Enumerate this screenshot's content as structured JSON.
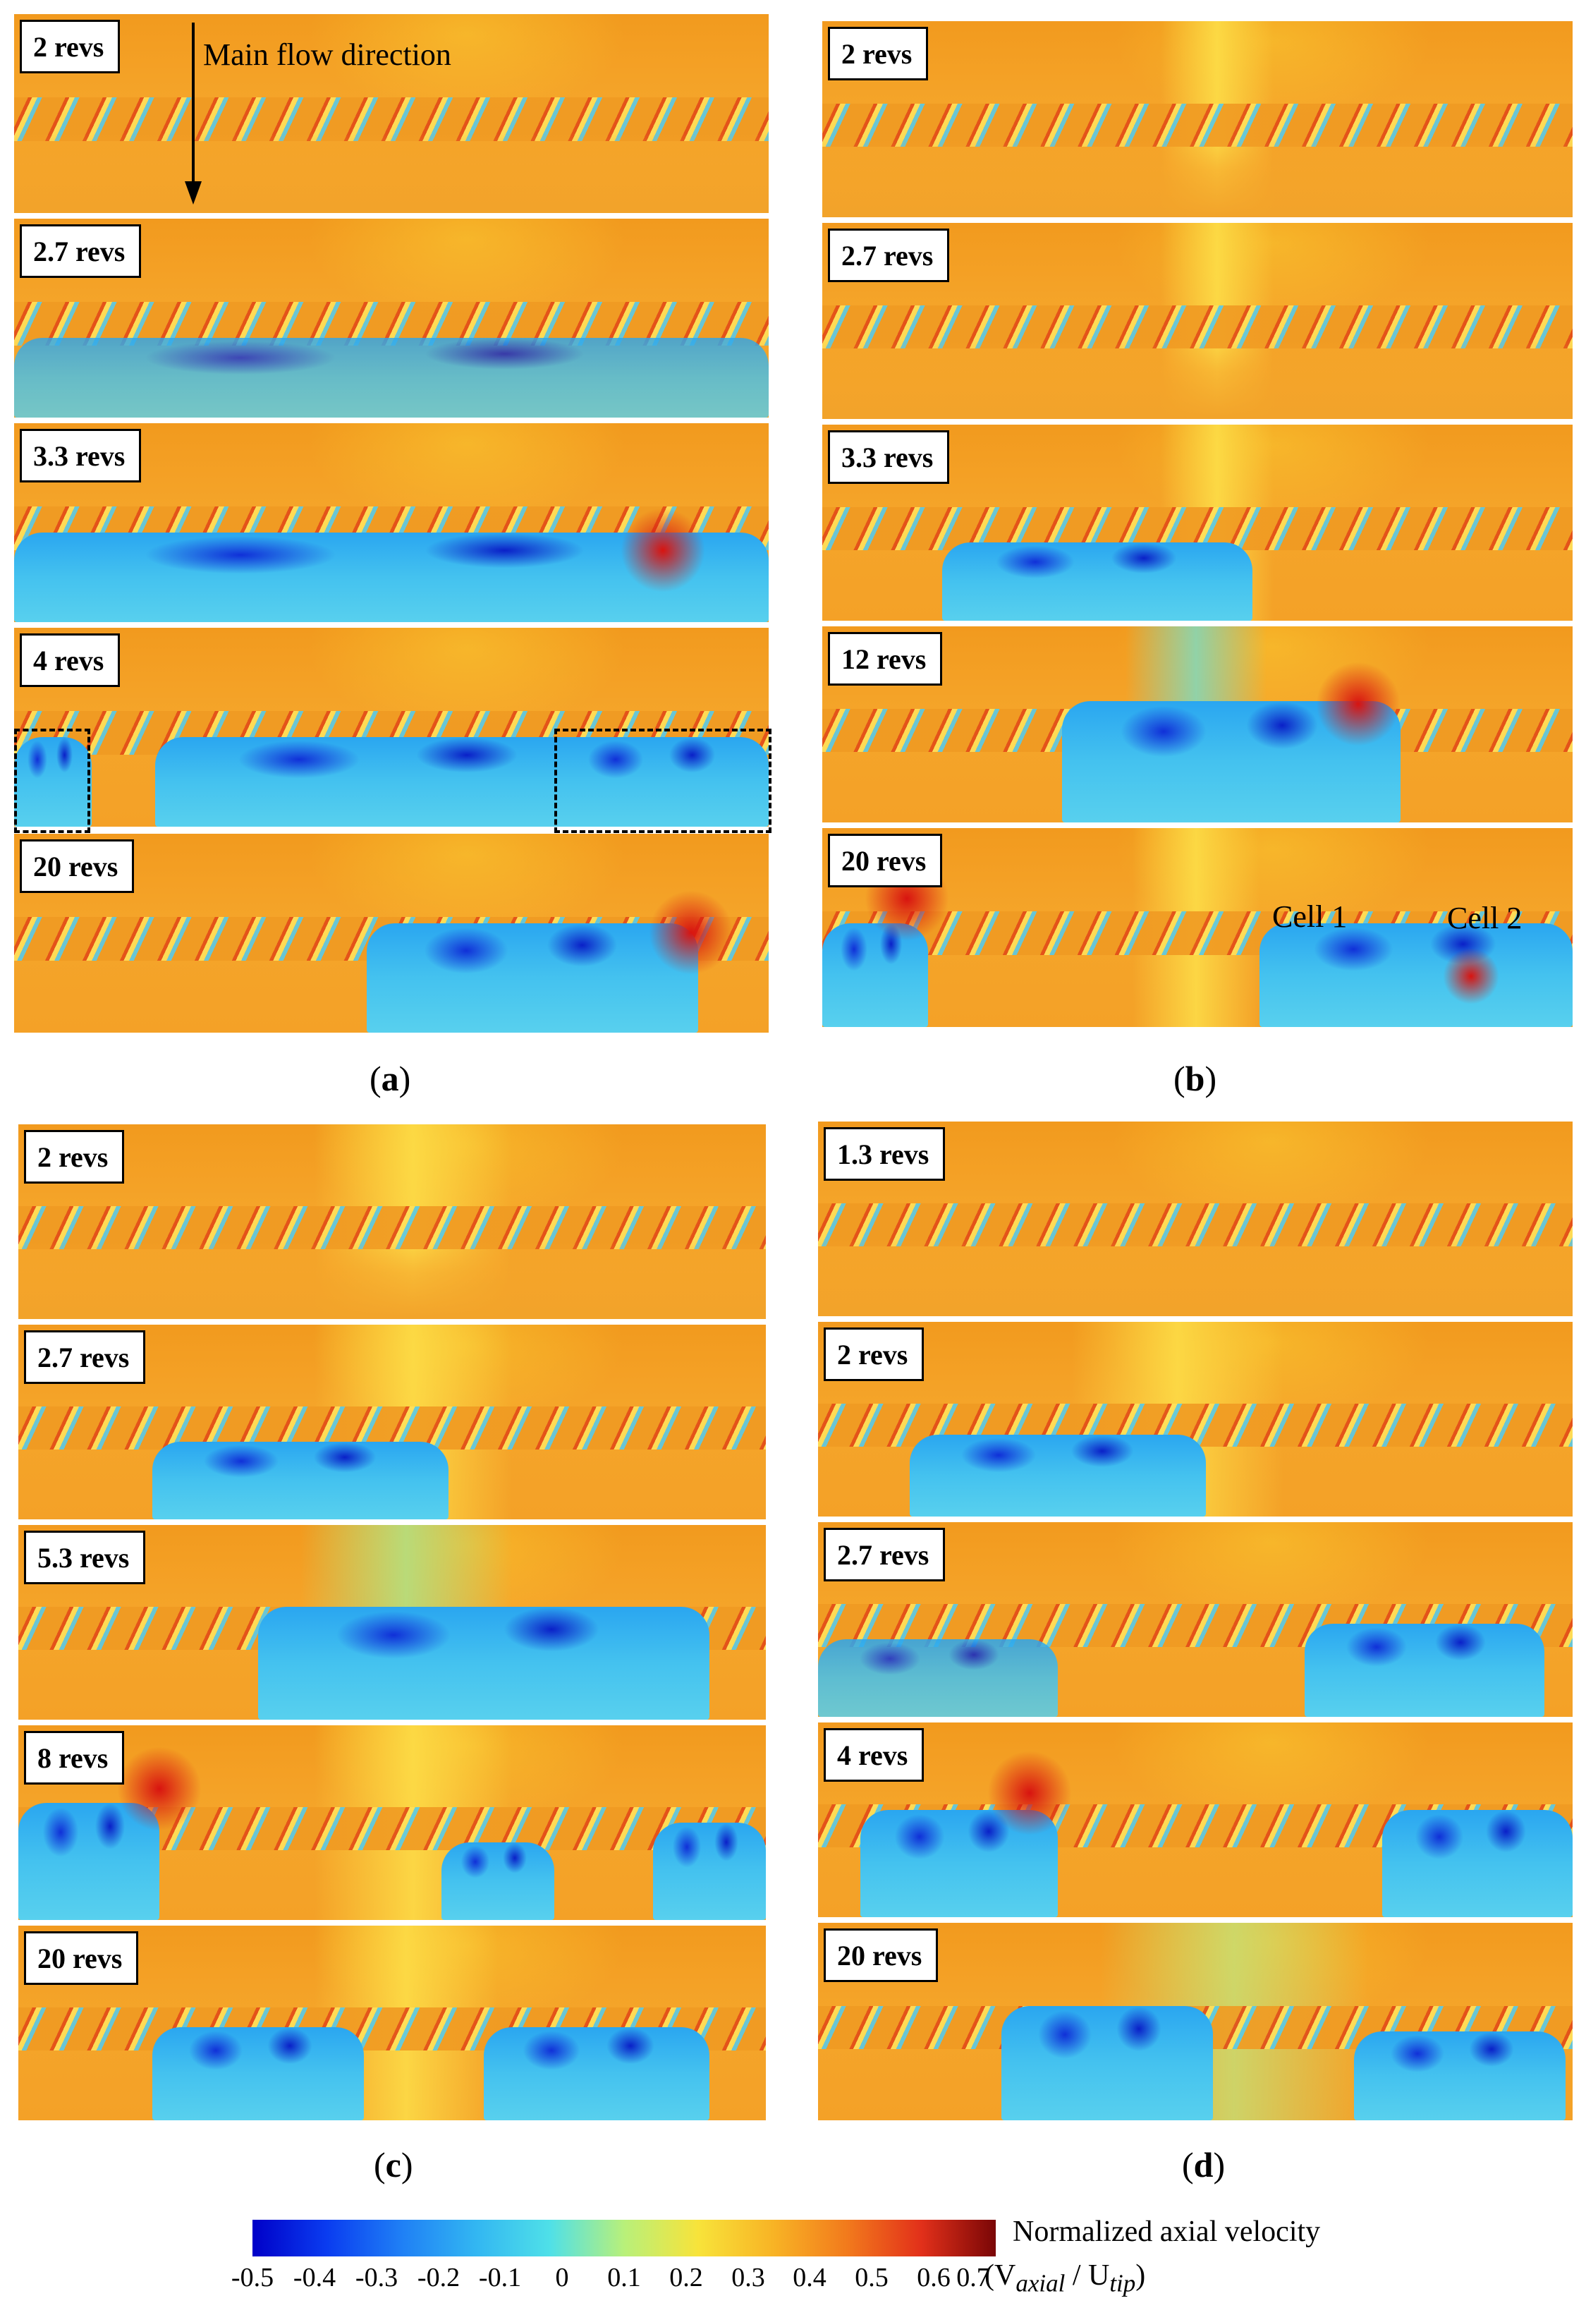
{
  "panels": [
    {
      "caption": "a",
      "snapshots": [
        {
          "label": "2 revs"
        },
        {
          "label": "2.7 revs"
        },
        {
          "label": "3.3 revs"
        },
        {
          "label": "4 revs"
        },
        {
          "label": "20 revs"
        }
      ],
      "annotation": "Main flow direction"
    },
    {
      "caption": "b",
      "snapshots": [
        {
          "label": "2 revs"
        },
        {
          "label": "2.7 revs"
        },
        {
          "label": "3.3 revs"
        },
        {
          "label": "12 revs"
        },
        {
          "label": "20 revs"
        }
      ],
      "cells": [
        "Cell 1",
        "Cell 2"
      ]
    },
    {
      "caption": "c",
      "snapshots": [
        {
          "label": "2 revs"
        },
        {
          "label": "2.7 revs"
        },
        {
          "label": "5.3 revs"
        },
        {
          "label": "8 revs"
        },
        {
          "label": "20 revs"
        }
      ]
    },
    {
      "caption": "d",
      "snapshots": [
        {
          "label": "1.3 revs"
        },
        {
          "label": "2 revs"
        },
        {
          "label": "2.7 revs"
        },
        {
          "label": "4 revs"
        },
        {
          "label": "20 revs"
        }
      ]
    }
  ],
  "colorbar": {
    "title": "Normalized axial velocity",
    "unit": "(V",
    "unit_sub1": "axial",
    "unit_mid": " / U",
    "unit_sub2": "tip",
    "unit_end": ")",
    "ticks": [
      "-0.5",
      "-0.4",
      "-0.3",
      "-0.2",
      "-0.1",
      "0",
      "0.1",
      "0.2",
      "0.3",
      "0.4",
      "0.5",
      "0.6",
      "0.7"
    ],
    "colors": [
      "#0000c8",
      "#1f7ff5",
      "#4fe0e8",
      "#f8e33a",
      "#f27a1c",
      "#7a0606"
    ]
  }
}
